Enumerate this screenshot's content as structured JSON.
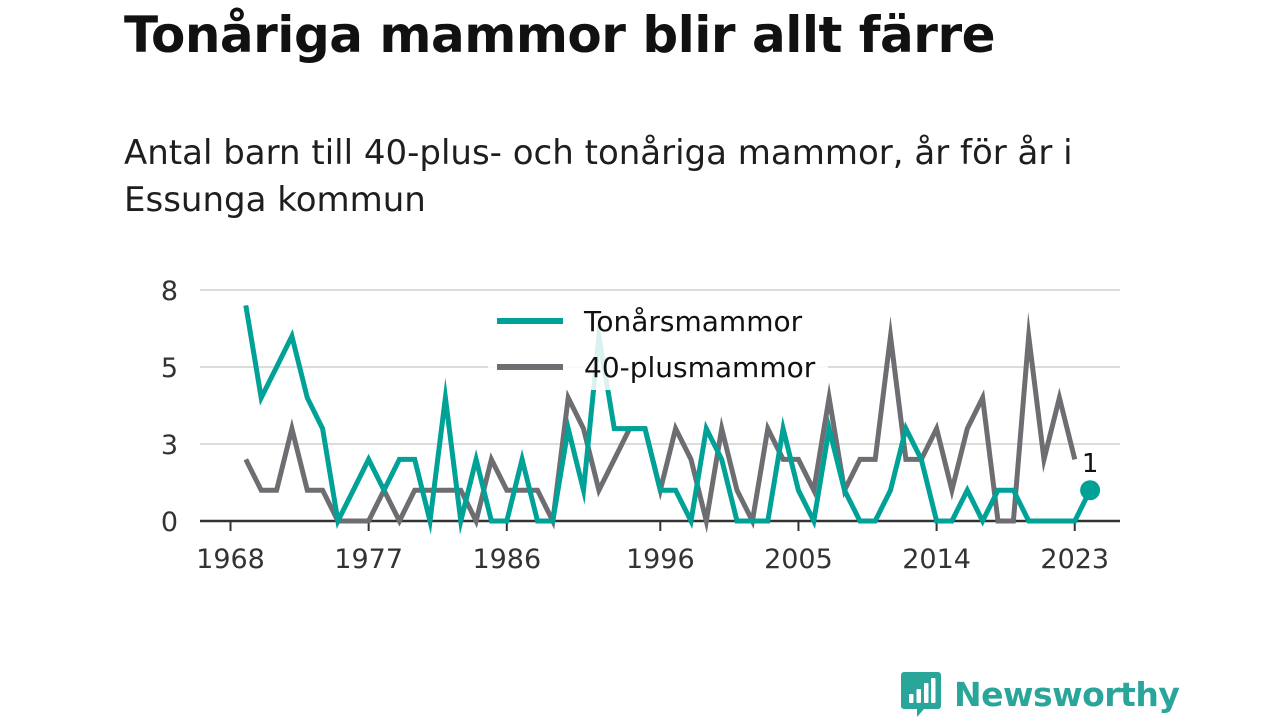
{
  "title": "Tonåriga mammor blir allt färre",
  "subtitle": "Antal barn till 40-plus- och tonåriga mammor, år för år i Essunga kommun",
  "brand": {
    "name": "Newsworthy"
  },
  "colors": {
    "teal": "#00a196",
    "gray": "#6e6e72",
    "grid": "#dcdcdc",
    "axis": "#333333",
    "text": "#111111",
    "brand": "#2aa59a"
  },
  "chart_data": {
    "type": "line",
    "x_ticks": [
      1968,
      1977,
      1986,
      1996,
      2005,
      2014,
      2023
    ],
    "y_ticks": [
      0,
      3,
      5,
      8
    ],
    "ylim": [
      0,
      7.5
    ],
    "xlim": [
      1968,
      2026
    ],
    "grid": true,
    "legend_position": "top-center",
    "end_label": "1",
    "series": [
      {
        "name": "Tonårsmammor",
        "color": "#00a196",
        "x": [
          1969,
          1970,
          1971,
          1972,
          1973,
          1974,
          1975,
          1976,
          1977,
          1978,
          1979,
          1980,
          1981,
          1982,
          1983,
          1984,
          1985,
          1986,
          1987,
          1988,
          1989,
          1990,
          1991,
          1992,
          1993,
          1994,
          1995,
          1996,
          1997,
          1998,
          1999,
          2000,
          2001,
          2002,
          2003,
          2004,
          2005,
          2006,
          2007,
          2008,
          2009,
          2010,
          2011,
          2012,
          2013,
          2014,
          2015,
          2016,
          2017,
          2018,
          2019,
          2020,
          2021,
          2022,
          2023,
          2024
        ],
        "values": [
          7,
          4,
          5,
          6,
          4,
          3,
          0,
          1,
          2,
          1,
          2,
          2,
          0,
          4,
          0,
          2,
          0,
          0,
          2,
          0,
          0,
          3,
          1,
          6,
          3,
          3,
          3,
          1,
          1,
          0,
          3,
          2,
          0,
          0,
          0,
          3,
          1,
          0,
          3,
          1,
          0,
          0,
          1,
          3,
          2,
          0,
          0,
          1,
          0,
          1,
          1,
          0,
          0,
          0,
          0,
          1
        ]
      },
      {
        "name": "40-plusmammor",
        "color": "#6e6e72",
        "x": [
          1969,
          1970,
          1971,
          1972,
          1973,
          1974,
          1975,
          1976,
          1977,
          1978,
          1979,
          1980,
          1981,
          1982,
          1983,
          1984,
          1985,
          1986,
          1987,
          1988,
          1989,
          1990,
          1991,
          1992,
          1993,
          1994,
          1995,
          1996,
          1997,
          1998,
          1999,
          2000,
          2001,
          2002,
          2003,
          2004,
          2005,
          2006,
          2007,
          2008,
          2009,
          2010,
          2011,
          2012,
          2013,
          2014,
          2015,
          2016,
          2017,
          2018,
          2019,
          2020,
          2021,
          2022,
          2023
        ],
        "values": [
          2,
          1,
          1,
          3,
          1,
          1,
          0,
          0,
          0,
          1,
          0,
          1,
          1,
          1,
          1,
          0,
          2,
          1,
          1,
          1,
          0,
          4,
          3,
          1,
          2,
          3,
          3,
          1,
          3,
          2,
          0,
          3,
          1,
          0,
          3,
          2,
          2,
          1,
          4,
          1,
          2,
          2,
          6,
          2,
          2,
          3,
          1,
          3,
          4,
          0,
          0,
          6,
          2,
          4,
          2
        ]
      }
    ]
  }
}
